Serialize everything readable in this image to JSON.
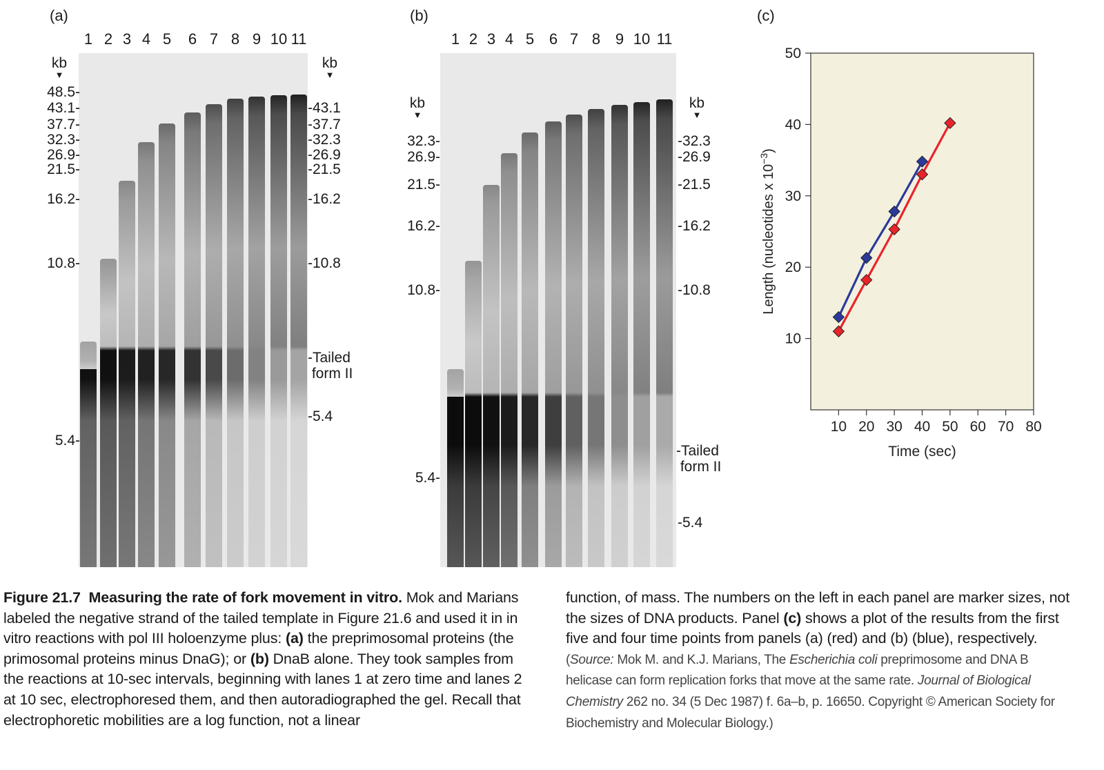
{
  "panels": {
    "a": {
      "label": "(a)",
      "kb_label": "kb",
      "lanes": [
        "1",
        "2",
        "3",
        "4",
        "5",
        "6",
        "7",
        "8",
        "9",
        "10",
        "11"
      ],
      "left_markers": [
        "48.5",
        "43.1",
        "37.7",
        "32.3",
        "26.9",
        "21.5",
        "16.2",
        "10.8",
        "5.4"
      ],
      "right_markers": [
        "43.1",
        "37.7",
        "32.3",
        "26.9",
        "21.5",
        "16.2",
        "10.8",
        "5.4"
      ],
      "tailed_form_line1": "Tailed",
      "tailed_form_line2": "form II"
    },
    "b": {
      "label": "(b)",
      "kb_label": "kb",
      "lanes": [
        "1",
        "2",
        "3",
        "4",
        "5",
        "6",
        "7",
        "8",
        "9",
        "10",
        "11"
      ],
      "left_markers": [
        "32.3",
        "26.9",
        "21.5",
        "16.2",
        "10.8",
        "5.4"
      ],
      "right_markers": [
        "32.3",
        "26.9",
        "21.5",
        "16.2",
        "10.8",
        "5.4"
      ],
      "tailed_form_line1": "Tailed",
      "tailed_form_line2": "form II"
    },
    "c": {
      "label": "(c)"
    }
  },
  "chart_data": {
    "type": "line",
    "title": "",
    "xlabel": "Time (sec)",
    "ylabel": "Length (nucleotides x 10",
    "ylabel_exp": "−3",
    "ylabel_close": ")",
    "xlim": [
      0,
      80
    ],
    "ylim": [
      0,
      50
    ],
    "x_ticks": [
      10,
      20,
      30,
      40,
      50,
      60,
      70,
      80
    ],
    "y_ticks": [
      10,
      20,
      30,
      40,
      50
    ],
    "series": [
      {
        "name": "panel (a)",
        "color": "#e8242b",
        "x": [
          10,
          20,
          30,
          40,
          50
        ],
        "y": [
          11,
          18.2,
          25.3,
          33,
          40.2
        ]
      },
      {
        "name": "panel (b)",
        "color": "#2b3a9a",
        "x": [
          10,
          20,
          30,
          40
        ],
        "y": [
          13,
          21.3,
          27.8,
          34.8
        ]
      }
    ],
    "background": "#f3f0de"
  },
  "caption": {
    "fig_label": "Figure 21.7",
    "title": "Measuring the rate of fork movement in vitro.",
    "seg1": "Mok and Marians labeled the negative strand of the tailed template in Figure 21.6 and used it in in vitro reactions with pol III holoenzyme plus: ",
    "a_label": "(a)",
    "seg2": " the preprimosomal proteins (the primosomal proteins minus DnaG); or ",
    "b_label": "(b)",
    "seg3": " DnaB alone. They took samples from the reactions at 10-sec intervals, beginning with lanes 1 at zero time and lanes 2 at 10 sec, electrophoresed them, and then autoradiographed the gel. Recall that electrophoretic mobilities are a log function, not a linear function, of mass. The numbers on the left in each panel are marker sizes, not the sizes of DNA products. Panel ",
    "c_label": "(c)",
    "seg4": " shows a plot of the results from the first five and four time points from panels (a) (red) and (b) (blue), respectively.",
    "source_open": "(",
    "source_label": "Source:",
    "source_authors": " Mok M. and K.J. Marians, The ",
    "source_species": "Escherichia coli",
    "source_mid": " preprimosome and DNA B helicase can form replication forks that move at the same rate. ",
    "source_journal": "Journal of Biological Chemistry",
    "source_end": " 262 no. 34 (5 Dec 1987) f. 6a–b, p. 16650. Copyright © American Society for Biochemistry and Molecular Biology.)"
  }
}
